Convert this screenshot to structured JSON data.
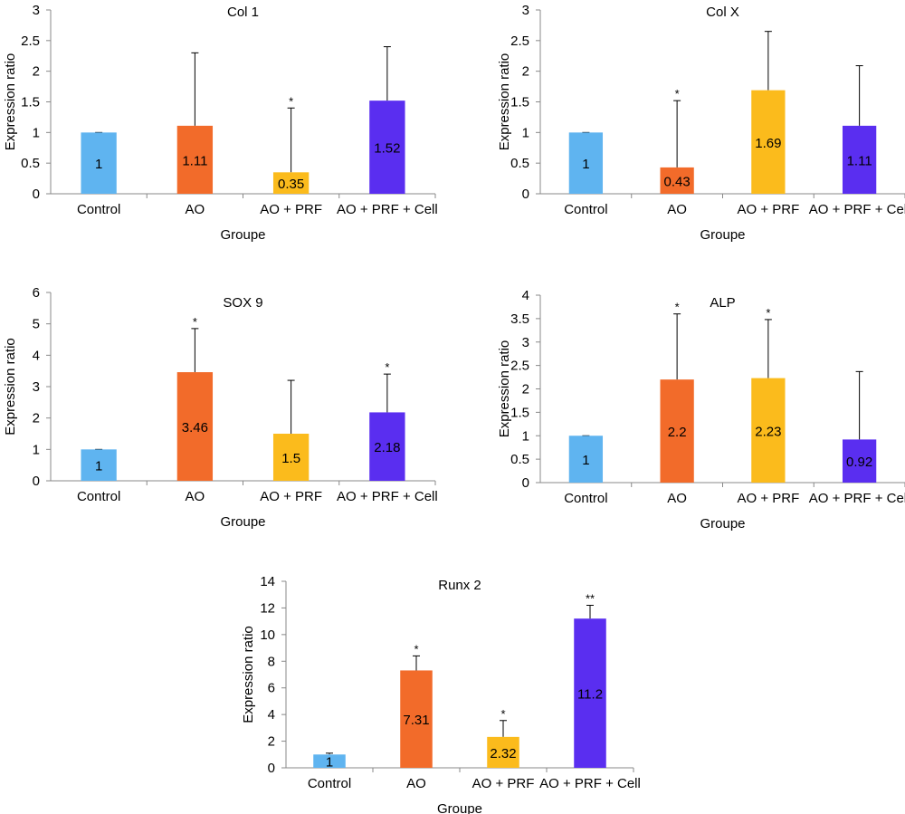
{
  "colors": {
    "Control": "#5fb4f0",
    "AO": "#f26b2a",
    "AO + PRF": "#fbbb1c",
    "AO + PRF + Cell": "#5a2ef0",
    "axis": "#888888",
    "error": "#000000"
  },
  "chart_data": [
    {
      "type": "bar",
      "title": "Col 1",
      "xlabel": "Groupe",
      "ylabel": "Expression ratio",
      "categories": [
        "Control",
        "AO",
        "AO + PRF",
        "AO + PRF + Cell"
      ],
      "values": [
        1,
        1.11,
        0.35,
        1.52
      ],
      "value_labels": [
        "1",
        "1.11",
        "0.35",
        "1.52"
      ],
      "error_upper": [
        1.0,
        2.3,
        1.4,
        2.4
      ],
      "significance": [
        "",
        "",
        "*",
        ""
      ],
      "ylim": [
        0,
        3
      ],
      "yticks": [
        "0",
        "0.5",
        "1",
        "1.5",
        "2",
        "2.5",
        "3"
      ]
    },
    {
      "type": "bar",
      "title": "Col X",
      "xlabel": "Groupe",
      "ylabel": "Expression ratio",
      "categories": [
        "Control",
        "AO",
        "AO + PRF",
        "AO + PRF + Cell"
      ],
      "values": [
        1,
        0.43,
        1.69,
        1.11
      ],
      "value_labels": [
        "1",
        "0.43",
        "1.69",
        "1.11"
      ],
      "error_upper": [
        1.0,
        1.52,
        2.65,
        2.09
      ],
      "significance": [
        "",
        "*",
        "",
        ""
      ],
      "ylim": [
        0,
        3
      ],
      "yticks": [
        "0",
        "0.5",
        "1",
        "1.5",
        "2",
        "2.5",
        "3"
      ]
    },
    {
      "type": "bar",
      "title": "SOX 9",
      "xlabel": "Groupe",
      "ylabel": "Expression ratio",
      "categories": [
        "Control",
        "AO",
        "AO + PRF",
        "AO + PRF + Cell"
      ],
      "values": [
        1,
        3.46,
        1.5,
        2.18
      ],
      "value_labels": [
        "1",
        "3.46",
        "1.5",
        "2.18"
      ],
      "error_upper": [
        1.0,
        4.85,
        3.2,
        3.4
      ],
      "significance": [
        "",
        "*",
        "",
        "*"
      ],
      "ylim": [
        0,
        6
      ],
      "yticks": [
        "0",
        "1",
        "2",
        "3",
        "4",
        "5",
        "6"
      ]
    },
    {
      "type": "bar",
      "title": "ALP",
      "xlabel": "Groupe",
      "ylabel": "Expression ratio",
      "categories": [
        "Control",
        "AO",
        "AO + PRF",
        "AO + PRF + Cell"
      ],
      "values": [
        1,
        2.2,
        2.23,
        0.92
      ],
      "value_labels": [
        "1",
        "2.2",
        "2.23",
        "0.92"
      ],
      "error_upper": [
        1.0,
        3.6,
        3.48,
        2.37
      ],
      "significance": [
        "",
        "*",
        "*",
        ""
      ],
      "ylim": [
        0,
        4
      ],
      "yticks": [
        "0",
        "0.5",
        "1",
        "1.5",
        "2",
        "2.5",
        "3",
        "3.5",
        "4"
      ]
    },
    {
      "type": "bar",
      "title": "Runx 2",
      "xlabel": "Groupe",
      "ylabel": "Expression ratio",
      "categories": [
        "Control",
        "AO",
        "AO + PRF",
        "AO + PRF + Cell"
      ],
      "values": [
        1,
        7.31,
        2.32,
        11.2
      ],
      "value_labels": [
        "1",
        "7.31",
        "2.32",
        "11.2"
      ],
      "error_upper": [
        1.1,
        8.4,
        3.55,
        12.2
      ],
      "significance": [
        "",
        "*",
        "*",
        "**"
      ],
      "ylim": [
        0,
        14
      ],
      "yticks": [
        "0",
        "2",
        "4",
        "6",
        "8",
        "10",
        "12",
        "14"
      ]
    }
  ]
}
